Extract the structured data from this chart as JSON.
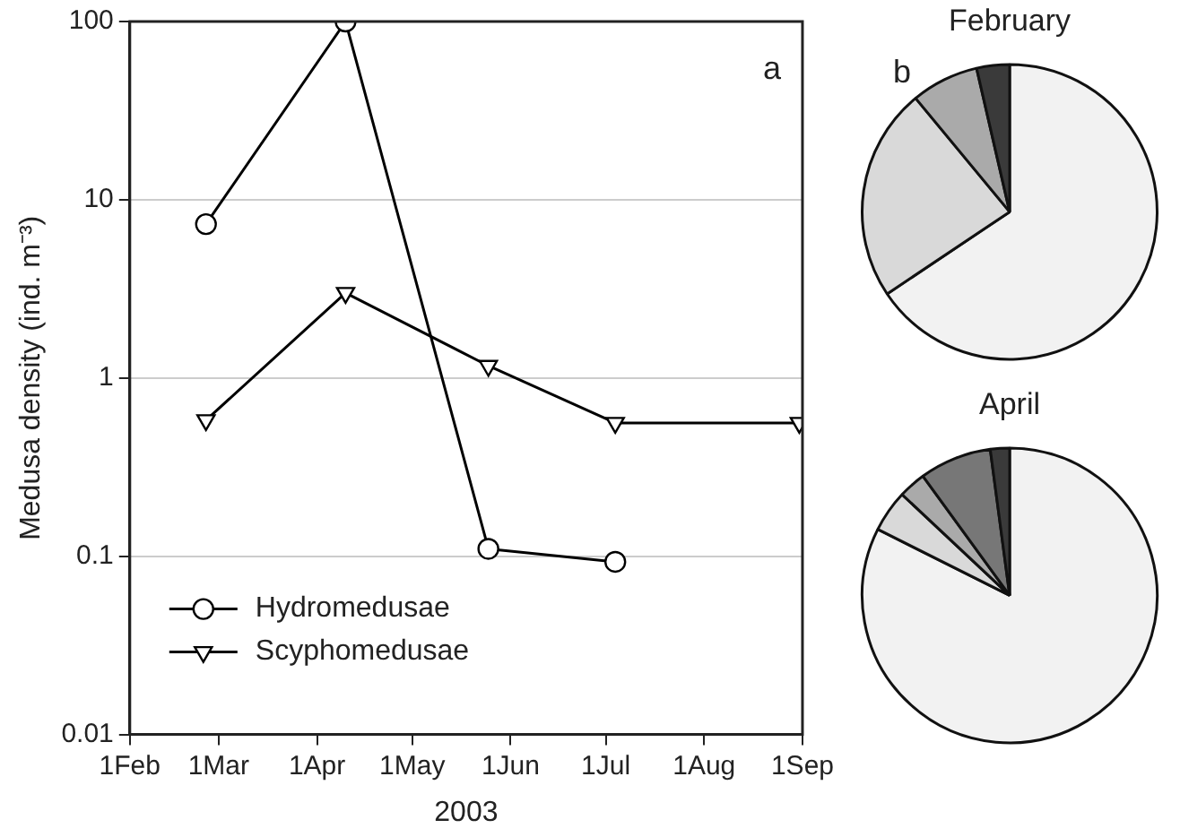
{
  "chart_data": [
    {
      "type": "line",
      "xlabel": "2003",
      "ylabel": "Medusa density (ind. m⁻³)",
      "log": "y",
      "grid": "y",
      "legend": "bottom left",
      "annotations": [
        "a"
      ],
      "xlim": [
        "2003-02-01",
        "2003-09-01"
      ],
      "xticks": [
        {
          "value": "2003-02-01",
          "label": "1Feb"
        },
        {
          "value": "2003-03-01",
          "label": "1Mar"
        },
        {
          "value": "2003-04-01",
          "label": "1Apr"
        },
        {
          "value": "2003-05-01",
          "label": "1May"
        },
        {
          "value": "2003-06-01",
          "label": "1Jun"
        },
        {
          "value": "2003-07-01",
          "label": "1Jul"
        },
        {
          "value": "2003-08-01",
          "label": "1Aug"
        },
        {
          "value": "2003-09-01",
          "label": "1Sep"
        }
      ],
      "ylim": [
        0.01,
        100
      ],
      "yticks": [
        0.01,
        0.1,
        1,
        10,
        100
      ],
      "series": [
        {
          "name": "Hydromedusae",
          "color": "#000000",
          "marker": "circle",
          "x": [
            "2003-02-25",
            "2003-04-10",
            "2003-05-25",
            "2003-07-04"
          ],
          "values": [
            7.3,
            100,
            0.11,
            0.093
          ]
        },
        {
          "name": "Scyphomedusae",
          "color": "#000000",
          "marker": "triangle",
          "x": [
            "2003-02-25",
            "2003-04-10",
            "2003-05-25",
            "2003-07-04",
            "2003-08-31"
          ],
          "values": [
            0.58,
            3.0,
            1.17,
            0.56,
            0.56
          ]
        }
      ]
    },
    {
      "type": "pie",
      "title": "February",
      "annotations": [
        "b"
      ],
      "categories": [
        null,
        null,
        null,
        null
      ],
      "values": [
        65.6,
        23.4,
        7.4,
        3.6
      ],
      "colors": [
        "#f2f2f2",
        "#d9d9d9",
        "#aaaaaa",
        "#3a3a3a"
      ]
    },
    {
      "type": "pie",
      "title": "April",
      "categories": [
        null,
        null,
        null,
        null,
        null
      ],
      "values": [
        82.4,
        4.6,
        3.0,
        7.9,
        2.1
      ],
      "colors": [
        "#f2f2f2",
        "#d9d9d9",
        "#aaaaaa",
        "#777777",
        "#3a3a3a"
      ]
    }
  ]
}
